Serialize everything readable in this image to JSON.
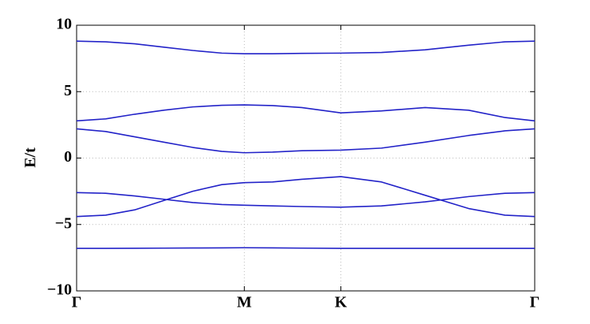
{
  "chart_data": {
    "type": "line",
    "ylabel": "E/t",
    "x": [
      0,
      0.2,
      0.4,
      0.6,
      0.8,
      1.0,
      1.155,
      1.35,
      1.55,
      1.82,
      2.1,
      2.4,
      2.7,
      2.95,
      3.155
    ],
    "series": [
      {
        "color": "#2222c8",
        "values": [
          8.8,
          8.75,
          8.6,
          8.35,
          8.1,
          7.9,
          7.85,
          7.85,
          7.88,
          7.9,
          7.95,
          8.15,
          8.5,
          8.75,
          8.8
        ]
      },
      {
        "color": "#2222c8",
        "values": [
          2.8,
          2.95,
          3.3,
          3.6,
          3.85,
          3.97,
          4.0,
          3.95,
          3.8,
          3.4,
          3.55,
          3.8,
          3.6,
          3.05,
          2.8
        ]
      },
      {
        "color": "#2222c8",
        "values": [
          2.2,
          2.0,
          1.6,
          1.2,
          0.8,
          0.5,
          0.4,
          0.45,
          0.55,
          0.6,
          0.75,
          1.2,
          1.7,
          2.05,
          2.2
        ]
      },
      {
        "color": "#2222c8",
        "values": [
          -4.4,
          -4.3,
          -3.9,
          -3.2,
          -2.5,
          -2.0,
          -1.85,
          -1.8,
          -1.6,
          -1.4,
          -1.8,
          -2.8,
          -3.8,
          -4.3,
          -4.4
        ]
      },
      {
        "color": "#2222c8",
        "values": [
          -2.6,
          -2.65,
          -2.85,
          -3.1,
          -3.35,
          -3.5,
          -3.55,
          -3.6,
          -3.65,
          -3.7,
          -3.6,
          -3.3,
          -2.9,
          -2.65,
          -2.6
        ]
      },
      {
        "color": "#2222c8",
        "values": [
          -6.8,
          -6.8,
          -6.79,
          -6.78,
          -6.77,
          -6.76,
          -6.75,
          -6.76,
          -6.78,
          -6.8,
          -6.8,
          -6.8,
          -6.8,
          -6.8,
          -6.8
        ]
      }
    ],
    "xlim": [
      0,
      3.155
    ],
    "xticks": [
      {
        "value": 0,
        "label": "Γ"
      },
      {
        "value": 1.155,
        "label": "M"
      },
      {
        "value": 1.82,
        "label": "K"
      },
      {
        "value": 3.155,
        "label": "Γ"
      }
    ],
    "ylim": [
      -10,
      10
    ],
    "yticks": [
      {
        "value": -10,
        "label": "−10"
      },
      {
        "value": -5,
        "label": "−5"
      },
      0,
      5,
      10
    ],
    "grid": true
  }
}
